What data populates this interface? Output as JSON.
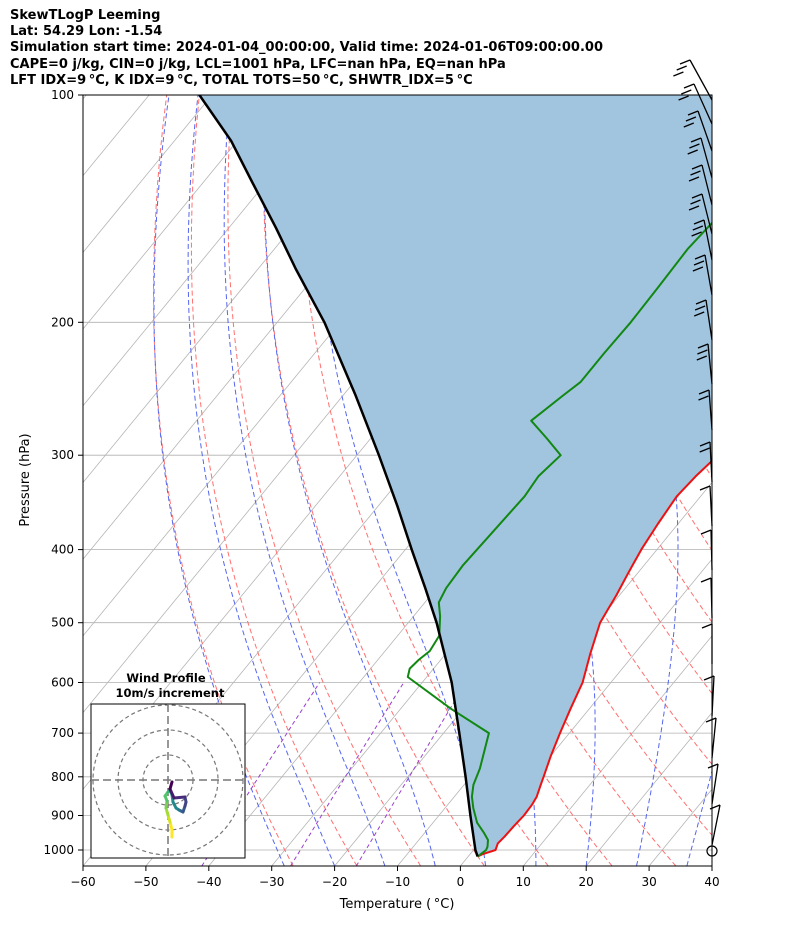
{
  "header": {
    "line1": "SkewTLogP Leeming",
    "line2": "Lat: 54.29   Lon: -1.54",
    "line3": "Simulation start time: 2024-01-04_00:00:00, Valid time: 2024-01-06T09:00:00.00",
    "line4": "CAPE=0 j/kg, CIN=0 j/kg, LCL=1001 hPa, LFC=nan hPa, EQ=nan hPa",
    "line5": "LFT IDX=9 °C, K IDX=9 °C, TOTAL TOTS=50 °C, SHWTR_IDX=5 °C"
  },
  "chart_data": {
    "type": "line",
    "subtype": "skew-T log-P",
    "xlabel": "Temperature ( °C)",
    "ylabel": "Pressure (hPa)",
    "xlim": [
      -60,
      40
    ],
    "ylim": [
      1050,
      100
    ],
    "y_scale": "log",
    "x_ticks": [
      -60,
      -50,
      -40,
      -30,
      -20,
      -10,
      0,
      10,
      20,
      30,
      40
    ],
    "x_tick_labels": [
      "−60",
      "−50",
      "−40",
      "−30",
      "−20",
      "−10",
      "0",
      "10",
      "20",
      "30",
      "40"
    ],
    "y_ticks": [
      100,
      200,
      300,
      400,
      500,
      600,
      700,
      800,
      900,
      1000
    ],
    "grid": true,
    "colors": {
      "temperature": "#ee1111",
      "dewpoint": "#118811",
      "parcel": "#000000",
      "fill": "#a1c4df",
      "isotherm": "#b5b5b5",
      "dry_adiabat": "#ff7070",
      "moist_adiabat": "#5566ee",
      "mixing_ratio": "#9a3fd0"
    },
    "series": [
      {
        "key": "temperature",
        "pressure": [
          1020,
          1013,
          1000,
          980,
          960,
          930,
          900,
          870,
          850,
          820,
          800,
          750,
          700,
          650,
          600,
          550,
          500,
          480,
          460,
          430,
          400,
          370,
          340,
          320,
          300,
          280,
          260,
          240,
          220,
          200,
          180,
          160,
          140,
          125,
          113,
          100
        ],
        "temperature": [
          1.5,
          2.0,
          3.5,
          3.0,
          3.2,
          3.3,
          3.5,
          3.4,
          3.1,
          2.2,
          1.6,
          0.0,
          -1.5,
          -3.0,
          -4.5,
          -7.0,
          -9.5,
          -10.0,
          -10.5,
          -11.5,
          -12.5,
          -13.2,
          -13.8,
          -13.4,
          -12.6,
          -11.5,
          -10.4,
          -9.3,
          -8.0,
          -6.5,
          -5.3,
          -3.8,
          -2.5,
          -1.5,
          -0.5,
          1.0
        ]
      },
      {
        "key": "dewpoint",
        "pressure": [
          1020,
          1013,
          1000,
          990,
          970,
          950,
          920,
          880,
          850,
          820,
          780,
          700,
          650,
          590,
          575,
          560,
          545,
          520,
          490,
          470,
          450,
          420,
          380,
          340,
          320,
          300,
          285,
          270,
          250,
          240,
          220,
          200,
          180,
          160,
          140,
          125,
          113,
          100
        ],
        "temperature": [
          1.5,
          1.7,
          2.0,
          1.8,
          1.0,
          -0.5,
          -3.0,
          -5.5,
          -7.2,
          -8.5,
          -9.6,
          -12.8,
          -22.0,
          -33.0,
          -33.8,
          -33.5,
          -32.9,
          -33.4,
          -35.8,
          -37.8,
          -38.5,
          -38.8,
          -38.4,
          -38.0,
          -38.4,
          -37.6,
          -42.0,
          -46.8,
          -45.0,
          -44.0,
          -44.0,
          -43.8,
          -44.0,
          -44.3,
          -43.5,
          -44.0,
          -42.6,
          -41.8
        ]
      },
      {
        "key": "parcel",
        "pressure": [
          1020,
          1000,
          900,
          800,
          700,
          600,
          500,
          450,
          400,
          350,
          300,
          250,
          200,
          170,
          150,
          130,
          115,
          100
        ],
        "temperature": [
          1.5,
          0.3,
          -5.0,
          -10.8,
          -17.5,
          -25.3,
          -35.5,
          -41.8,
          -49.0,
          -57.0,
          -66.5,
          -78.0,
          -92.5,
          -104.0,
          -112.5,
          -122.5,
          -131.0,
          -142.0
        ]
      }
    ],
    "wind_profile": {
      "title": "Wind Profile",
      "subtitle": "10m/s increment",
      "colormap": "viridis"
    }
  }
}
